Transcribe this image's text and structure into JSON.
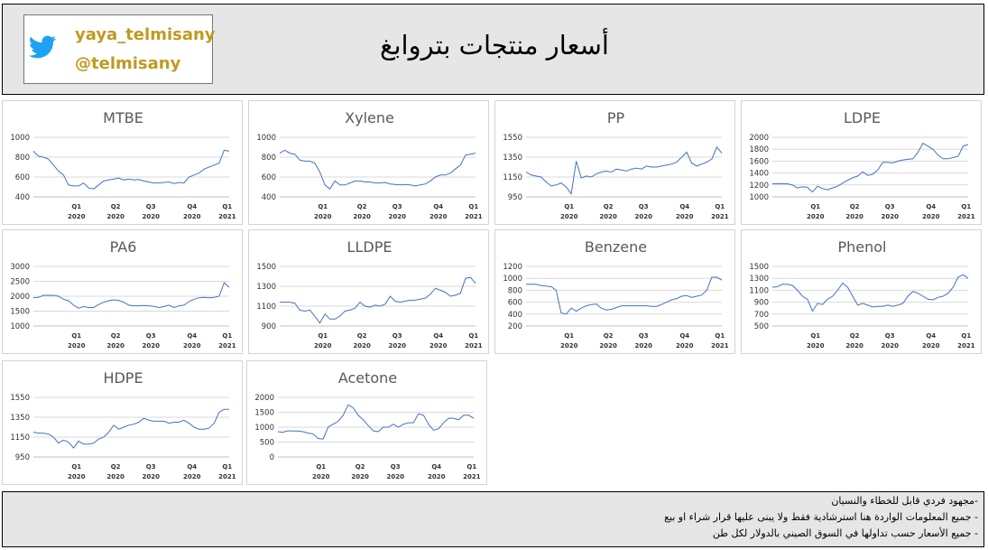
{
  "header": {
    "title": "أسعار منتجات بتروابغ",
    "handle_1": "yaya_telmisany",
    "handle_2": "@telmisany",
    "icon": "twitter-bird-icon"
  },
  "colors": {
    "line": "#4472c4",
    "grid": "#d9d9d9",
    "axis": "#bfbfbf"
  },
  "footer": {
    "notes": [
      "-مجهود فردي قابل للخطاء والنسيان",
      "- جميع المعلومات الواردة هنا استرشادية فقط ولا يبنى عليها قرار شراء او بيع",
      "- جميع الأسعار حسب تداولها في السوق الصيني بالدولار لكل طن"
    ]
  },
  "chart_data": [
    {
      "type": "line",
      "title": "MTBE",
      "ylim": [
        400,
        1000
      ],
      "yticks": [
        400,
        600,
        800,
        1000
      ],
      "xticks": [
        {
          "q": "Q1",
          "y": "2020"
        },
        {
          "q": "Q2",
          "y": "2020"
        },
        {
          "q": "Q3",
          "y": "2020"
        },
        {
          "q": "Q4",
          "y": "2020"
        },
        {
          "q": "Q1",
          "y": "2021"
        }
      ],
      "values": [
        860,
        810,
        800,
        780,
        720,
        660,
        620,
        520,
        510,
        510,
        540,
        490,
        480,
        520,
        560,
        570,
        580,
        590,
        570,
        580,
        570,
        575,
        560,
        550,
        540,
        540,
        545,
        550,
        535,
        545,
        540,
        600,
        620,
        640,
        680,
        700,
        720,
        740,
        870,
        860
      ]
    },
    {
      "type": "line",
      "title": "Xylene",
      "ylim": [
        400,
        1000
      ],
      "yticks": [
        400,
        600,
        800,
        1000
      ],
      "xticks": [
        {
          "q": "Q1",
          "y": "2020"
        },
        {
          "q": "Q2",
          "y": "2020"
        },
        {
          "q": "Q3",
          "y": "2020"
        },
        {
          "q": "Q4",
          "y": "2020"
        },
        {
          "q": "Q1",
          "y": "2021"
        }
      ],
      "values": [
        840,
        870,
        840,
        830,
        770,
        760,
        760,
        740,
        650,
        520,
        480,
        560,
        520,
        520,
        540,
        560,
        560,
        550,
        550,
        540,
        540,
        545,
        530,
        525,
        520,
        525,
        520,
        510,
        520,
        530,
        560,
        600,
        620,
        620,
        640,
        680,
        720,
        820,
        830,
        840
      ]
    },
    {
      "type": "line",
      "title": "PP",
      "ylim": [
        950,
        1550
      ],
      "yticks": [
        950,
        1150,
        1350,
        1550
      ],
      "xticks": [
        {
          "q": "Q1",
          "y": "2020"
        },
        {
          "q": "Q2",
          "y": "2020"
        },
        {
          "q": "Q3",
          "y": "2020"
        },
        {
          "q": "Q4",
          "y": "2020"
        },
        {
          "q": "Q1",
          "y": "2021"
        }
      ],
      "values": [
        1200,
        1170,
        1160,
        1150,
        1100,
        1060,
        1070,
        1090,
        1050,
        980,
        1310,
        1140,
        1160,
        1150,
        1180,
        1200,
        1210,
        1200,
        1230,
        1220,
        1210,
        1230,
        1240,
        1230,
        1260,
        1250,
        1250,
        1260,
        1270,
        1280,
        1300,
        1350,
        1400,
        1290,
        1260,
        1280,
        1300,
        1330,
        1450,
        1390
      ]
    },
    {
      "type": "line",
      "title": "LDPE",
      "ylim": [
        1000,
        2000
      ],
      "yticks": [
        1000,
        1200,
        1400,
        1600,
        1800,
        2000
      ],
      "xticks": [
        {
          "q": "Q1",
          "y": "2020"
        },
        {
          "q": "Q2",
          "y": "2020"
        },
        {
          "q": "Q3",
          "y": "2020"
        },
        {
          "q": "Q4",
          "y": "2020"
        },
        {
          "q": "Q1",
          "y": "2021"
        }
      ],
      "values": [
        1220,
        1220,
        1220,
        1220,
        1200,
        1150,
        1170,
        1160,
        1080,
        1180,
        1140,
        1120,
        1150,
        1180,
        1230,
        1280,
        1320,
        1350,
        1420,
        1360,
        1380,
        1450,
        1580,
        1580,
        1570,
        1600,
        1620,
        1630,
        1640,
        1750,
        1900,
        1850,
        1800,
        1700,
        1640,
        1640,
        1660,
        1680,
        1850,
        1880
      ]
    },
    {
      "type": "line",
      "title": "PA6",
      "ylim": [
        1000,
        3000
      ],
      "yticks": [
        1000,
        1500,
        2000,
        2500,
        3000
      ],
      "xticks": [
        {
          "q": "Q1",
          "y": "2020"
        },
        {
          "q": "Q2",
          "y": "2020"
        },
        {
          "q": "Q3",
          "y": "2020"
        },
        {
          "q": "Q4",
          "y": "2020"
        },
        {
          "q": "Q1",
          "y": "2021"
        }
      ],
      "values": [
        1950,
        1960,
        2030,
        2030,
        2030,
        2000,
        1900,
        1850,
        1700,
        1600,
        1650,
        1620,
        1620,
        1720,
        1800,
        1850,
        1880,
        1860,
        1800,
        1700,
        1680,
        1680,
        1690,
        1680,
        1660,
        1620,
        1650,
        1700,
        1620,
        1680,
        1700,
        1820,
        1900,
        1950,
        1960,
        1950,
        1960,
        2000,
        2450,
        2300
      ]
    },
    {
      "type": "line",
      "title": "LLDPE",
      "ylim": [
        900,
        1500
      ],
      "yticks": [
        900,
        1100,
        1300,
        1500
      ],
      "xticks": [
        {
          "q": "Q1",
          "y": "2020"
        },
        {
          "q": "Q2",
          "y": "2020"
        },
        {
          "q": "Q3",
          "y": "2020"
        },
        {
          "q": "Q4",
          "y": "2020"
        },
        {
          "q": "Q1",
          "y": "2021"
        }
      ],
      "values": [
        1140,
        1140,
        1140,
        1130,
        1060,
        1050,
        1060,
        1000,
        930,
        1020,
        970,
        970,
        1000,
        1050,
        1060,
        1080,
        1140,
        1100,
        1090,
        1110,
        1100,
        1120,
        1200,
        1150,
        1140,
        1150,
        1160,
        1160,
        1170,
        1180,
        1220,
        1280,
        1260,
        1240,
        1200,
        1210,
        1230,
        1380,
        1390,
        1330
      ]
    },
    {
      "type": "line",
      "title": "Benzene",
      "ylim": [
        200,
        1200
      ],
      "yticks": [
        200,
        400,
        600,
        800,
        1000,
        1200
      ],
      "xticks": [
        {
          "q": "Q1",
          "y": "2020"
        },
        {
          "q": "Q2",
          "y": "2020"
        },
        {
          "q": "Q3",
          "y": "2020"
        },
        {
          "q": "Q4",
          "y": "2020"
        },
        {
          "q": "Q1",
          "y": "2021"
        }
      ],
      "values": [
        900,
        900,
        900,
        880,
        870,
        860,
        800,
        420,
        400,
        500,
        450,
        500,
        540,
        560,
        570,
        500,
        470,
        480,
        510,
        540,
        540,
        540,
        540,
        540,
        540,
        530,
        530,
        560,
        600,
        640,
        660,
        700,
        710,
        680,
        700,
        720,
        800,
        1020,
        1020,
        970
      ]
    },
    {
      "type": "line",
      "title": "Phenol",
      "ylim": [
        500,
        1500
      ],
      "yticks": [
        500,
        700,
        900,
        1100,
        1300,
        1500
      ],
      "xticks": [
        {
          "q": "Q1",
          "y": "2020"
        },
        {
          "q": "Q2",
          "y": "2020"
        },
        {
          "q": "Q3",
          "y": "2020"
        },
        {
          "q": "Q4",
          "y": "2020"
        },
        {
          "q": "Q1",
          "y": "2021"
        }
      ],
      "values": [
        1150,
        1160,
        1200,
        1200,
        1180,
        1100,
        1000,
        950,
        750,
        880,
        860,
        950,
        1000,
        1100,
        1220,
        1150,
        1000,
        850,
        880,
        850,
        820,
        830,
        830,
        850,
        830,
        850,
        880,
        1000,
        1080,
        1050,
        1000,
        950,
        940,
        980,
        1000,
        1050,
        1150,
        1320,
        1360,
        1300
      ]
    },
    {
      "type": "line",
      "title": "HDPE",
      "ylim": [
        950,
        1550
      ],
      "yticks": [
        950,
        1150,
        1350,
        1550
      ],
      "xticks": [
        {
          "q": "Q1",
          "y": "2020"
        },
        {
          "q": "Q2",
          "y": "2020"
        },
        {
          "q": "Q3",
          "y": "2020"
        },
        {
          "q": "Q4",
          "y": "2020"
        },
        {
          "q": "Q1",
          "y": "2021"
        }
      ],
      "values": [
        1200,
        1190,
        1190,
        1180,
        1150,
        1090,
        1120,
        1100,
        1040,
        1110,
        1080,
        1080,
        1090,
        1130,
        1150,
        1200,
        1270,
        1230,
        1250,
        1270,
        1280,
        1300,
        1340,
        1320,
        1310,
        1310,
        1310,
        1290,
        1300,
        1300,
        1320,
        1290,
        1250,
        1230,
        1230,
        1240,
        1290,
        1400,
        1430,
        1430
      ]
    },
    {
      "type": "line",
      "title": "Acetone",
      "ylim": [
        0,
        2000
      ],
      "yticks": [
        0,
        500,
        1000,
        1500,
        2000
      ],
      "xticks": [
        {
          "q": "Q1",
          "y": "2020"
        },
        {
          "q": "Q2",
          "y": "2020"
        },
        {
          "q": "Q3",
          "y": "2020"
        },
        {
          "q": "Q4",
          "y": "2020"
        },
        {
          "q": "Q1",
          "y": "2021"
        }
      ],
      "values": [
        850,
        830,
        880,
        870,
        870,
        850,
        800,
        780,
        620,
        600,
        1000,
        1100,
        1200,
        1400,
        1750,
        1650,
        1400,
        1250,
        1050,
        880,
        850,
        1000,
        1000,
        1100,
        1000,
        1100,
        1150,
        1150,
        1450,
        1400,
        1100,
        900,
        950,
        1150,
        1300,
        1300,
        1250,
        1400,
        1400,
        1300
      ]
    }
  ]
}
